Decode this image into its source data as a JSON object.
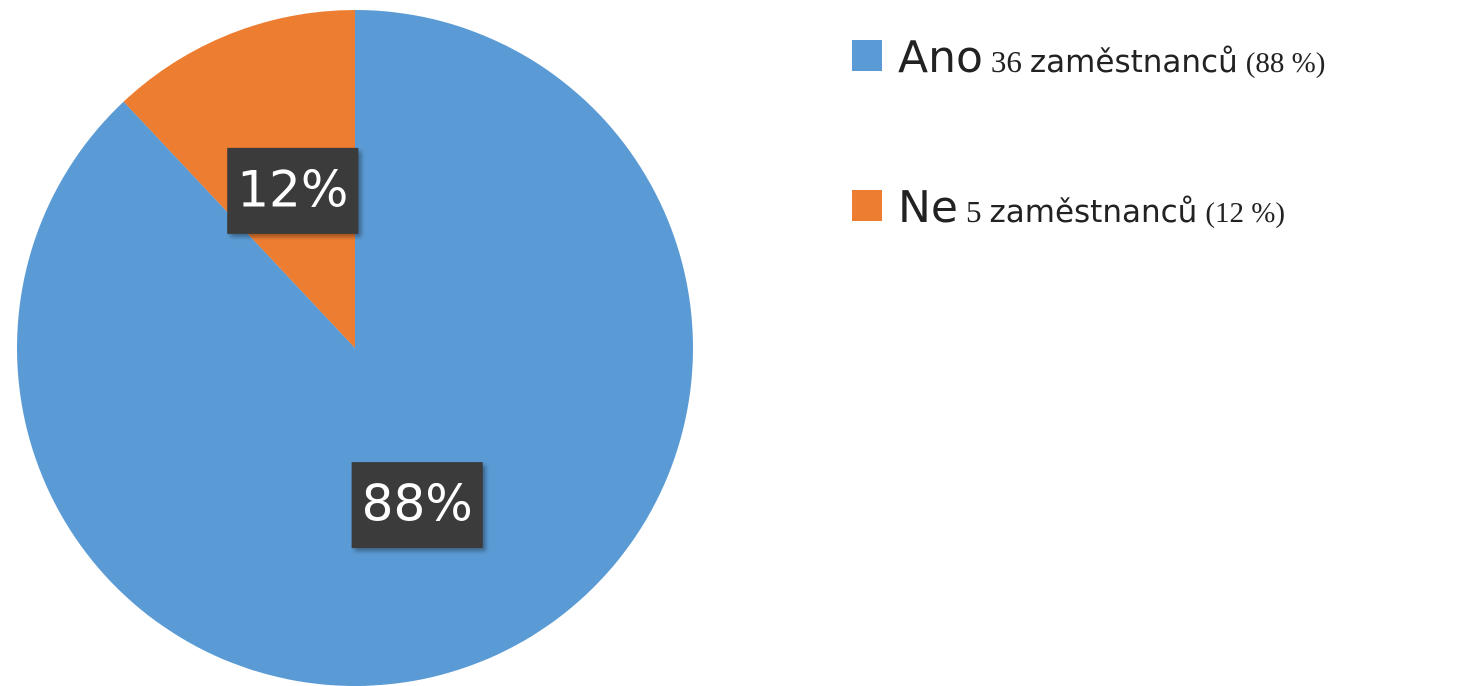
{
  "chart_data": {
    "type": "pie",
    "categories": [
      "Ano",
      "Ne"
    ],
    "values": [
      88,
      12
    ],
    "value_labels": [
      "88%",
      "12%"
    ],
    "colors": [
      "#5b9bd5",
      "#ed7d31"
    ],
    "legend_notes": [
      [
        "36",
        "zaměstnanců",
        "(88 %)"
      ],
      [
        "5",
        "zaměstnanců",
        "(12 %)"
      ]
    ]
  }
}
